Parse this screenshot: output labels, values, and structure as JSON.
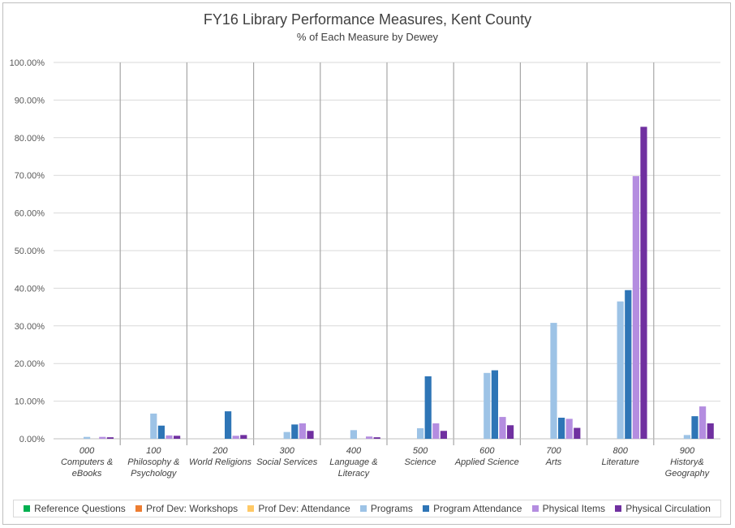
{
  "chart_data": {
    "type": "bar",
    "title": "FY16 Library Performance Measures, Kent County",
    "subtitle": "% of Each Measure by Dewey",
    "xlabel": "",
    "ylabel": "",
    "ylim": [
      0,
      100
    ],
    "yticks": [
      "0.00%",
      "10.00%",
      "20.00%",
      "30.00%",
      "40.00%",
      "50.00%",
      "60.00%",
      "70.00%",
      "80.00%",
      "90.00%",
      "100.00%"
    ],
    "categories": [
      [
        "000",
        "Computers &",
        "eBooks"
      ],
      [
        "100",
        "Philosophy &",
        "Psychology"
      ],
      [
        "200",
        "World Religions"
      ],
      [
        "300",
        "Social Services"
      ],
      [
        "400",
        "Language &",
        "Literacy"
      ],
      [
        "500",
        "Science"
      ],
      [
        "600",
        "Applied Science"
      ],
      [
        "700",
        "Arts"
      ],
      [
        "800",
        "Literature"
      ],
      [
        "900",
        "History&",
        "Geography"
      ]
    ],
    "series": [
      {
        "name": "Reference Questions",
        "color": "#00b050",
        "values": [
          0,
          0,
          0,
          0,
          0,
          0,
          0,
          0,
          0,
          0
        ]
      },
      {
        "name": "Prof Dev: Workshops",
        "color": "#ed7d31",
        "values": [
          0,
          0,
          0,
          0,
          0,
          0,
          0,
          0,
          0,
          0
        ]
      },
      {
        "name": "Prof Dev: Attendance",
        "color": "#ffc966",
        "values": [
          0,
          0,
          0,
          0,
          0,
          0,
          0,
          0,
          0,
          0
        ]
      },
      {
        "name": "Programs",
        "color": "#9dc3e6",
        "values": [
          0.5,
          6.7,
          0,
          1.8,
          2.3,
          2.8,
          17.5,
          30.8,
          36.5,
          1.0
        ]
      },
      {
        "name": "Program Attendance",
        "color": "#2e75b6",
        "values": [
          0,
          3.5,
          7.3,
          3.8,
          0,
          16.6,
          18.2,
          5.6,
          39.5,
          6.0
        ]
      },
      {
        "name": "Physical Items",
        "color": "#b48de0",
        "values": [
          0.5,
          0.9,
          0.8,
          4.1,
          0.6,
          4.1,
          5.8,
          5.3,
          69.8,
          8.6
        ]
      },
      {
        "name": "Physical Circulation",
        "color": "#7030a0",
        "values": [
          0.4,
          0.8,
          1.0,
          2.1,
          0.4,
          2.1,
          3.6,
          2.9,
          82.9,
          4.1
        ]
      }
    ]
  }
}
